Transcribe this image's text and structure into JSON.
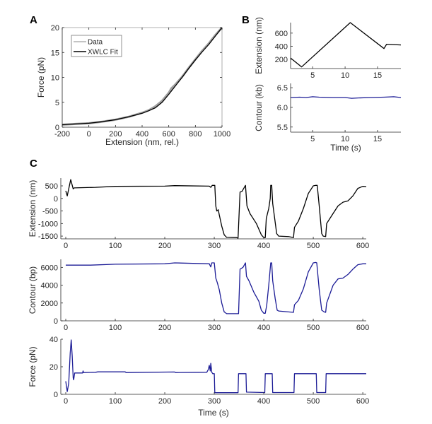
{
  "colors": {
    "extension": "#000000",
    "contour": "#1c1c96",
    "force": "#1c1c96",
    "data": "#a0a0a0",
    "fit": "#000000",
    "axis": "#262626"
  },
  "chart_data": [
    {
      "id": "A",
      "panel_label": "A",
      "type": "line",
      "xlabel": "Extension (nm, rel.)",
      "ylabel": "Force (pN)",
      "xlim": [
        -200,
        1000
      ],
      "ylim": [
        0,
        20
      ],
      "box": true,
      "grid": false,
      "xticks": [
        -200,
        0,
        200,
        400,
        600,
        800,
        1000
      ],
      "xtick_labels": [
        "-200",
        "0",
        "200",
        "400",
        "600",
        "800",
        "1000"
      ],
      "yticks": [
        0,
        5,
        10,
        15,
        20
      ],
      "ytick_labels": [
        "0",
        "5",
        "10",
        "15",
        "20"
      ],
      "legend": {
        "placement": "top-left",
        "entries": [
          "Data",
          "XWLC Fit"
        ]
      },
      "series": [
        {
          "name": "Data",
          "color": "#a0a0a0",
          "points": [
            [
              -200,
              0.5
            ],
            [
              -100,
              0.65
            ],
            [
              0,
              0.8
            ],
            [
              100,
              1.1
            ],
            [
              200,
              1.5
            ],
            [
              300,
              2.1
            ],
            [
              400,
              2.9
            ],
            [
              450,
              3.4
            ],
            [
              500,
              4.2
            ],
            [
              550,
              5.3
            ],
            [
              600,
              6.9
            ],
            [
              620,
              7.8
            ],
            [
              650,
              8.6
            ],
            [
              700,
              10.1
            ],
            [
              750,
              11.9
            ],
            [
              800,
              13.6
            ],
            [
              850,
              15.3
            ],
            [
              900,
              16.8
            ],
            [
              950,
              18.5
            ],
            [
              1000,
              20
            ]
          ]
        },
        {
          "name": "XWLC Fit",
          "color": "#000000",
          "points": [
            [
              -200,
              0.5
            ],
            [
              -100,
              0.65
            ],
            [
              0,
              0.8
            ],
            [
              100,
              1.1
            ],
            [
              200,
              1.5
            ],
            [
              300,
              2.1
            ],
            [
              400,
              2.8
            ],
            [
              450,
              3.3
            ],
            [
              500,
              3.9
            ],
            [
              550,
              5.0
            ],
            [
              600,
              6.6
            ],
            [
              650,
              8.3
            ],
            [
              700,
              10.0
            ],
            [
              750,
              11.8
            ],
            [
              800,
              13.5
            ],
            [
              850,
              15.1
            ],
            [
              900,
              16.6
            ],
            [
              950,
              18.3
            ],
            [
              1000,
              20
            ]
          ]
        }
      ]
    },
    {
      "id": "B1",
      "panel_label": "B",
      "type": "line",
      "xlabel": "",
      "ylabel": "Extension (nm)",
      "xlim": [
        1.6,
        18.6
      ],
      "ylim": [
        60,
        760
      ],
      "box": false,
      "grid": false,
      "xticks": [
        5,
        10,
        15
      ],
      "xtick_labels": [
        "5",
        "10",
        "15"
      ],
      "yticks": [
        200,
        400,
        600
      ],
      "ytick_labels": [
        "200",
        "400",
        "600"
      ],
      "series": [
        {
          "color": "#000000",
          "points": [
            [
              1.6,
              220
            ],
            [
              3.3,
              85
            ],
            [
              10.8,
              760
            ],
            [
              16.0,
              365
            ],
            [
              16.4,
              430
            ],
            [
              18.6,
              420
            ]
          ]
        }
      ]
    },
    {
      "id": "B2",
      "panel_label": "",
      "type": "line",
      "xlabel": "Time (s)",
      "ylabel": "Contour (kb)",
      "xlim": [
        1.6,
        18.6
      ],
      "ylim": [
        5.37,
        6.61
      ],
      "box": false,
      "grid": false,
      "xticks": [
        5,
        10,
        15
      ],
      "xtick_labels": [
        "5",
        "10",
        "15"
      ],
      "yticks": [
        5.5,
        6.0,
        6.5
      ],
      "ytick_labels": [
        "5.5",
        "6.0",
        "6.5"
      ],
      "series": [
        {
          "color": "#1c1c96",
          "points": [
            [
              1.6,
              6.25
            ],
            [
              3,
              6.26
            ],
            [
              4,
              6.25
            ],
            [
              5,
              6.27
            ],
            [
              6,
              6.26
            ],
            [
              8,
              6.25
            ],
            [
              10,
              6.25
            ],
            [
              11,
              6.23
            ],
            [
              12,
              6.24
            ],
            [
              14,
              6.25
            ],
            [
              16,
              6.26
            ],
            [
              17.5,
              6.27
            ],
            [
              18.6,
              6.25
            ]
          ]
        }
      ]
    },
    {
      "id": "C1",
      "panel_label": "C",
      "type": "line",
      "xlabel": "",
      "ylabel": "Extension (nm)",
      "xlim": [
        -10,
        607
      ],
      "ylim": [
        -1610,
        810
      ],
      "box": false,
      "grid": false,
      "xticks": [
        0,
        100,
        200,
        300,
        400,
        500,
        600
      ],
      "xtick_labels": [
        "0",
        "100",
        "200",
        "300",
        "400",
        "500",
        "600"
      ],
      "yticks": [
        500,
        0,
        -500,
        -1000,
        -1500
      ],
      "ytick_labels": [
        "500",
        "0",
        "-500",
        "-1000",
        "-1500"
      ],
      "series": [
        {
          "color": "#000000",
          "points": [
            [
              0,
              300
            ],
            [
              3,
              100
            ],
            [
              10,
              750
            ],
            [
              15,
              380
            ],
            [
              17,
              420
            ],
            [
              60,
              440
            ],
            [
              100,
              480
            ],
            [
              200,
              490
            ],
            [
              220,
              510
            ],
            [
              290,
              490
            ],
            [
              293,
              440
            ],
            [
              296,
              520
            ],
            [
              301,
              520
            ],
            [
              303,
              -300
            ],
            [
              305,
              -500
            ],
            [
              308,
              -450
            ],
            [
              310,
              -650
            ],
            [
              315,
              -1100
            ],
            [
              320,
              -1450
            ],
            [
              325,
              -1550
            ],
            [
              345,
              -1560
            ],
            [
              348,
              -1580
            ],
            [
              352,
              250
            ],
            [
              356,
              280
            ],
            [
              360,
              420
            ],
            [
              363,
              520
            ],
            [
              366,
              -300
            ],
            [
              372,
              -600
            ],
            [
              385,
              -1000
            ],
            [
              395,
              -1450
            ],
            [
              400,
              -1560
            ],
            [
              403,
              -1560
            ],
            [
              405,
              -800
            ],
            [
              410,
              -400
            ],
            [
              413,
              0
            ],
            [
              414,
              520
            ],
            [
              416,
              520
            ],
            [
              418,
              -200
            ],
            [
              422,
              -800
            ],
            [
              426,
              -1400
            ],
            [
              430,
              -1500
            ],
            [
              450,
              -1520
            ],
            [
              460,
              -1560
            ],
            [
              462,
              -1150
            ],
            [
              470,
              -900
            ],
            [
              480,
              -400
            ],
            [
              490,
              200
            ],
            [
              500,
              500
            ],
            [
              505,
              520
            ],
            [
              508,
              520
            ],
            [
              512,
              -300
            ],
            [
              517,
              -1400
            ],
            [
              520,
              -1500
            ],
            [
              525,
              -1520
            ],
            [
              527,
              -1000
            ],
            [
              540,
              -600
            ],
            [
              550,
              -300
            ],
            [
              560,
              -150
            ],
            [
              570,
              -100
            ],
            [
              580,
              100
            ],
            [
              590,
              400
            ],
            [
              600,
              480
            ],
            [
              607,
              470
            ]
          ]
        }
      ]
    },
    {
      "id": "C2",
      "panel_label": "",
      "type": "line",
      "xlabel": "",
      "ylabel": "Contour (bp)",
      "xlim": [
        -10,
        607
      ],
      "ylim": [
        0,
        6900
      ],
      "box": false,
      "grid": false,
      "xticks": [
        0,
        100,
        200,
        300,
        400,
        500,
        600
      ],
      "xtick_labels": [
        "0",
        "100",
        "200",
        "300",
        "400",
        "500",
        "600"
      ],
      "yticks": [
        0,
        2000,
        4000,
        6000
      ],
      "ytick_labels": [
        "0",
        "2000",
        "4000",
        "6000"
      ],
      "series": [
        {
          "color": "#1c1c96",
          "points": [
            [
              0,
              6250
            ],
            [
              50,
              6250
            ],
            [
              100,
              6350
            ],
            [
              200,
              6400
            ],
            [
              220,
              6500
            ],
            [
              290,
              6400
            ],
            [
              293,
              6050
            ],
            [
              295,
              6500
            ],
            [
              300,
              6500
            ],
            [
              303,
              4800
            ],
            [
              306,
              4300
            ],
            [
              310,
              3500
            ],
            [
              315,
              2000
            ],
            [
              320,
              1000
            ],
            [
              325,
              800
            ],
            [
              345,
              800
            ],
            [
              349,
              800
            ],
            [
              352,
              5800
            ],
            [
              358,
              6000
            ],
            [
              363,
              6500
            ],
            [
              365,
              5000
            ],
            [
              370,
              4500
            ],
            [
              380,
              3200
            ],
            [
              390,
              2200
            ],
            [
              395,
              1200
            ],
            [
              400,
              850
            ],
            [
              403,
              850
            ],
            [
              406,
              1800
            ],
            [
              410,
              4000
            ],
            [
              414,
              6500
            ],
            [
              416,
              6500
            ],
            [
              418,
              4500
            ],
            [
              423,
              2500
            ],
            [
              427,
              1200
            ],
            [
              430,
              1100
            ],
            [
              460,
              950
            ],
            [
              462,
              1800
            ],
            [
              470,
              2300
            ],
            [
              480,
              3600
            ],
            [
              490,
              5500
            ],
            [
              500,
              6500
            ],
            [
              505,
              6550
            ],
            [
              507,
              6500
            ],
            [
              512,
              3500
            ],
            [
              517,
              1200
            ],
            [
              522,
              1000
            ],
            [
              525,
              950
            ],
            [
              527,
              2000
            ],
            [
              540,
              4000
            ],
            [
              550,
              4700
            ],
            [
              560,
              4800
            ],
            [
              570,
              5200
            ],
            [
              580,
              5800
            ],
            [
              590,
              6300
            ],
            [
              600,
              6400
            ],
            [
              607,
              6400
            ]
          ]
        }
      ]
    },
    {
      "id": "C3",
      "panel_label": "",
      "type": "line",
      "xlabel": "Time (s)",
      "ylabel": "Force (pN)",
      "xlim": [
        -10,
        607
      ],
      "ylim": [
        0,
        40
      ],
      "box": false,
      "grid": false,
      "xticks": [
        0,
        100,
        200,
        300,
        400,
        500,
        600
      ],
      "xtick_labels": [
        "0",
        "100",
        "200",
        "300",
        "400",
        "500",
        "600"
      ],
      "yticks": [
        0,
        20,
        40
      ],
      "ytick_labels": [
        "0",
        "20",
        "40"
      ],
      "series": [
        {
          "color": "#1c1c96",
          "points": [
            [
              0,
              9.5
            ],
            [
              3,
              2
            ],
            [
              6,
              8
            ],
            [
              9,
              30
            ],
            [
              11,
              39.5
            ],
            [
              13,
              28
            ],
            [
              15,
              12
            ],
            [
              16,
              10.5
            ],
            [
              18,
              15.5
            ],
            [
              34,
              15.5
            ],
            [
              35,
              17
            ],
            [
              36,
              15.8
            ],
            [
              60,
              16
            ],
            [
              65,
              16.3
            ],
            [
              120,
              16.3
            ],
            [
              122,
              15.8
            ],
            [
              220,
              16.2
            ],
            [
              222,
              15.8
            ],
            [
              285,
              16
            ],
            [
              288,
              18
            ],
            [
              290,
              21
            ],
            [
              292,
              17
            ],
            [
              293,
              22.5
            ],
            [
              295,
              16
            ],
            [
              297,
              15
            ],
            [
              300,
              15
            ],
            [
              301,
              1.2
            ],
            [
              348,
              1.2
            ],
            [
              349,
              15
            ],
            [
              364,
              15
            ],
            [
              365,
              1.6
            ],
            [
              402,
              1.3
            ],
            [
              403,
              15
            ],
            [
              417,
              15
            ],
            [
              418,
              1.3
            ],
            [
              461,
              1.3
            ],
            [
              462,
              15
            ],
            [
              506,
              15
            ],
            [
              507,
              1.3
            ],
            [
              525,
              1.3
            ],
            [
              526,
              15
            ],
            [
              607,
              15
            ]
          ]
        }
      ]
    }
  ]
}
